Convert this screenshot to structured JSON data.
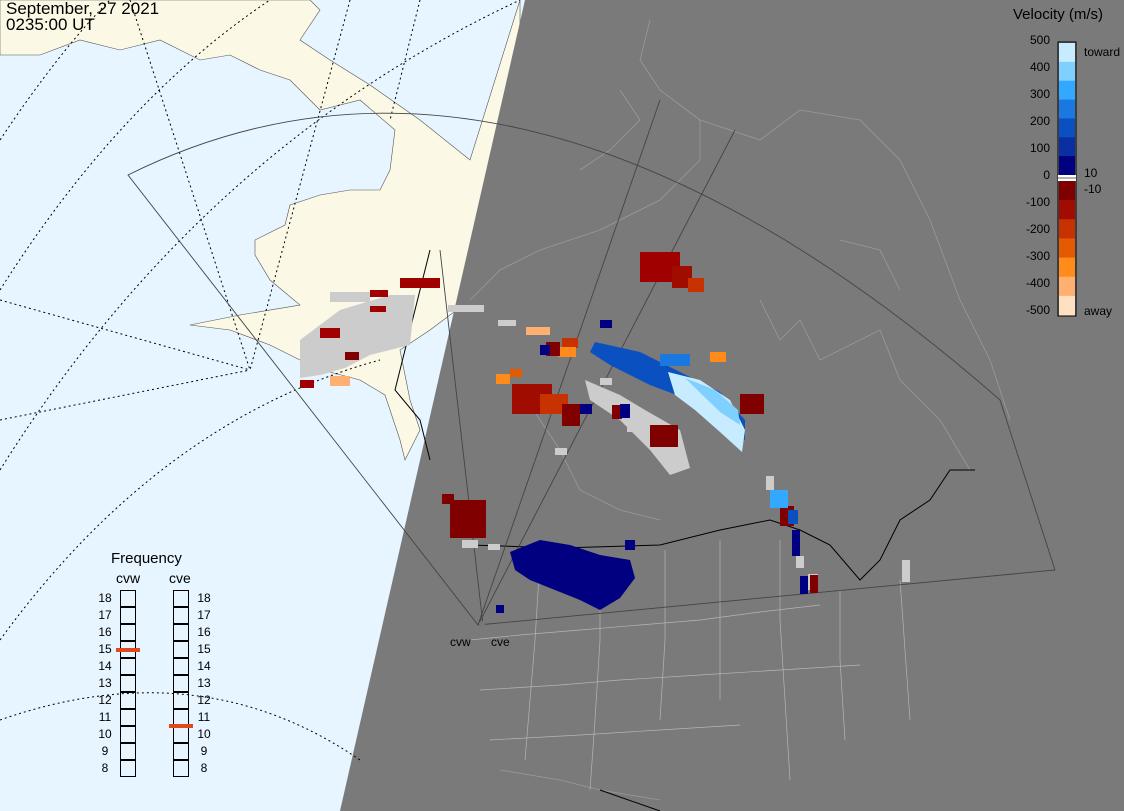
{
  "header": {
    "date": "September, 27 2021",
    "time": "0235:00 UT"
  },
  "colorbar": {
    "title": "Velocity (m/s)",
    "labels": [
      "500",
      "400",
      "300",
      "200",
      "100",
      "0",
      "-100",
      "-200",
      "-300",
      "-400",
      "-500"
    ],
    "inner_labels": [
      "10",
      "-10"
    ],
    "toward_label": "toward",
    "away_label": "away",
    "colors_toward": [
      "#c8ecff",
      "#7fd0ff",
      "#33a8ff",
      "#1a78e0",
      "#0a50c0",
      "#0a2fa0",
      "#000080"
    ],
    "colors_away": [
      "#800000",
      "#a00d00",
      "#c83200",
      "#e35a00",
      "#ff8c1a",
      "#ffb070",
      "#ffe0c0"
    ]
  },
  "frequency": {
    "title": "Frequency",
    "radars": [
      {
        "name": "cvw",
        "selected_mhz": 15
      },
      {
        "name": "cve",
        "selected_mhz": 10.5
      }
    ],
    "ticks": [
      "18",
      "17",
      "16",
      "15",
      "14",
      "13",
      "12",
      "11",
      "10",
      "9",
      "8"
    ]
  },
  "radars": [
    "cvw",
    "cve"
  ],
  "map_colors": {
    "ocean_day": "#e6f5ff",
    "land_day": "#fbf8e5",
    "night": "#7a7a7a",
    "ground_scatter": "#cccccc"
  }
}
